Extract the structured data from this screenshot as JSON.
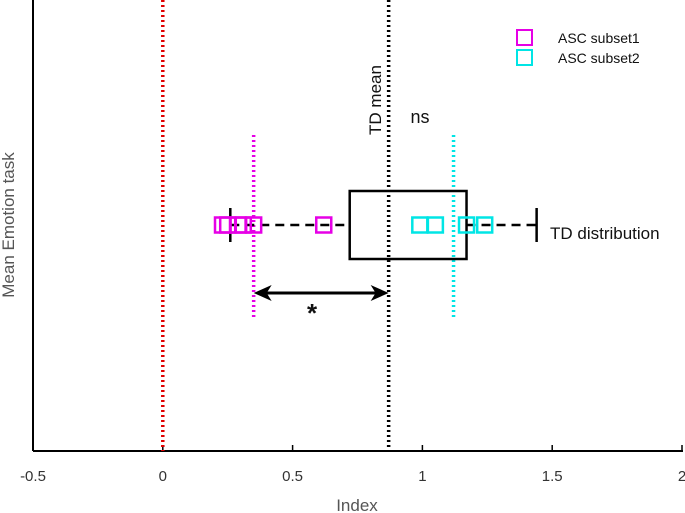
{
  "chart_data": {
    "type": "scatter",
    "title": "",
    "xlabel": "Index",
    "ylabel": "Mean Emotion task",
    "xlim": [
      -0.5,
      2
    ],
    "xticks": [
      -0.5,
      0,
      0.5,
      1,
      1.5,
      2
    ],
    "x_tick_labels": [
      "-0.5",
      "0",
      "0.5",
      "1",
      "1.5",
      "2"
    ],
    "grid": false,
    "legend_position": "top-right",
    "reference_lines": [
      {
        "x": 0,
        "color": "#e00000",
        "style": "dotted"
      },
      {
        "x": 0.87,
        "color": "#000000",
        "style": "dotted",
        "label": "TD mean"
      },
      {
        "x": 0.35,
        "color": "#e600e6",
        "style": "dotted"
      },
      {
        "x": 1.12,
        "color": "#00e5e5",
        "style": "dotted"
      }
    ],
    "td_distribution": {
      "label": "TD distribution",
      "whisker_low": 0.26,
      "q1": 0.72,
      "q3": 1.17,
      "whisker_high": 1.44
    },
    "series": [
      {
        "name": "ASC subset1",
        "color": "#e600e6",
        "marker": "square",
        "x": [
          0.23,
          0.25,
          0.29,
          0.31,
          0.35,
          0.62
        ]
      },
      {
        "name": "ASC subset2",
        "color": "#00e5e5",
        "marker": "square",
        "x": [
          0.99,
          1.05,
          1.17,
          1.24
        ]
      }
    ],
    "annotations": {
      "significance_star": "*",
      "not_significant": "ns",
      "arrow_from": 0.35,
      "arrow_to": 0.87
    }
  }
}
